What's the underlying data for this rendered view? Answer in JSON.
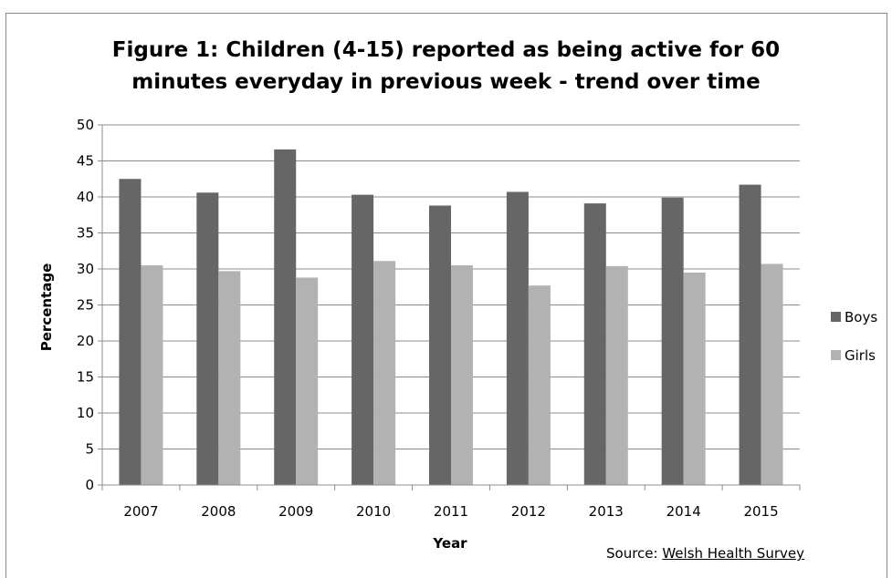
{
  "chart_data": {
    "type": "bar",
    "title_lines": [
      "Figure 1: Children (4-15) reported as being active for 60",
      "minutes everyday in previous week - trend over time"
    ],
    "categories": [
      "2007",
      "2008",
      "2009",
      "2010",
      "2011",
      "2012",
      "2013",
      "2014",
      "2015"
    ],
    "series": [
      {
        "name": "Boys",
        "color": "#666666",
        "values": [
          42.5,
          40.6,
          46.6,
          40.3,
          38.8,
          40.7,
          39.1,
          39.9,
          41.7
        ]
      },
      {
        "name": "Girls",
        "color": "#b2b2b2",
        "values": [
          30.5,
          29.7,
          28.8,
          31.1,
          30.5,
          27.7,
          30.4,
          29.5,
          30.7
        ]
      }
    ],
    "xlabel": "Year",
    "ylabel": "Percentage",
    "ylim": [
      0,
      50
    ],
    "yticks": [
      "0",
      "5",
      "10",
      "15",
      "20",
      "25",
      "30",
      "35",
      "40",
      "45",
      "50"
    ],
    "grid": true,
    "legend_position": "right"
  },
  "source": {
    "prefix": "Source: ",
    "link_text": "Welsh Health Survey"
  }
}
